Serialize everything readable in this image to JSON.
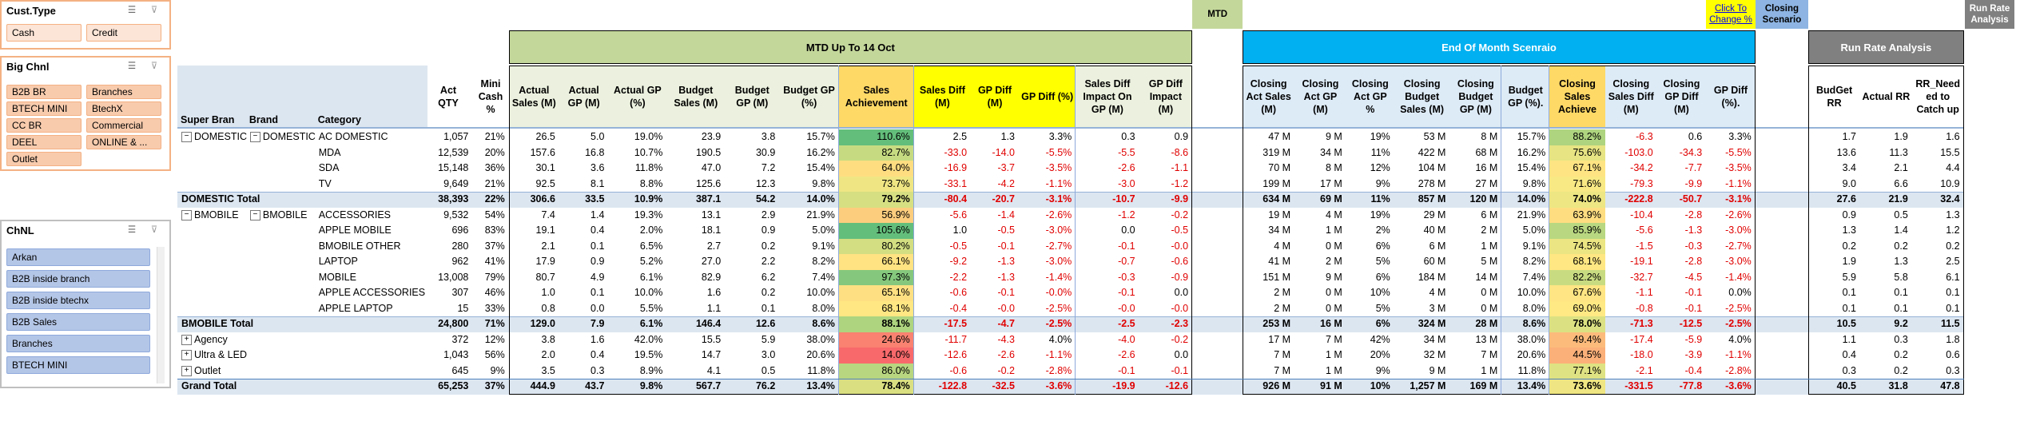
{
  "slicers": [
    {
      "title": "Cust.Type",
      "items": [
        "Cash",
        "Credit"
      ]
    },
    {
      "title": "Big Chnl",
      "items": [
        "B2B BR",
        "Branches",
        "BTECH MINI",
        "BtechX",
        "CC BR",
        "Commercial",
        "DEEL",
        "ONLINE & ...",
        "Outlet"
      ]
    },
    {
      "title": "ChNL",
      "items": [
        "Arkan",
        "B2B inside branch",
        "B2B inside btechx",
        "B2B Sales",
        "Branches",
        "BTECH MINI"
      ]
    }
  ],
  "buttons": {
    "mtd": "MTD",
    "click_to_change": "Click To Change %",
    "closing_scenario": "Closing Scenario",
    "run_rate_analysis": "Run Rate Analysis"
  },
  "table": {
    "groups": {
      "mtd": "MTD Up To 14 Oct",
      "end_of_month": "End Of Month Scenraio",
      "run_rate": "Run Rate Analysis"
    },
    "columns": [
      "Super Bran",
      "Brand",
      "Category",
      "Act QTY",
      "Mini Cash %",
      "Actual Sales (M)",
      "Actual GP (M)",
      "Actual GP (%)",
      "Budget Sales (M)",
      "Budget GP (M)",
      "Budget GP (%)",
      "Sales Achievement",
      "Sales Diff (M)",
      "GP Diff (M)",
      "GP Diff (%)",
      "Sales Diff Impact On GP (M)",
      "GP Diff Impact (M)",
      "Closing Act Sales (M)",
      "Closing Act GP (M)",
      "Closing Act GP %",
      "Closing Budget Sales (M)",
      "Closing Budget GP (M)",
      "Budget GP (%).",
      "Closing Sales Achieve",
      "Closing Sales Diff (M)",
      "Closing GP Diff (M)",
      "GP Diff (%).",
      "BudGet RR",
      "Actual RR",
      "RR_Needed to Catch up"
    ],
    "rows": [
      [
        "DOMESTIC",
        "DOMESTIC",
        "AC DOMESTIC",
        "1,057",
        "21%",
        "26.5",
        "5.0",
        "19.0%",
        "23.9",
        "3.8",
        "15.7%",
        "110.6%",
        "2.5",
        "1.3",
        "3.3%",
        "0.3",
        "0.9",
        "47 M",
        "9 M",
        "19%",
        "53 M",
        "8 M",
        "15.7%",
        "88.2%",
        "-6.3",
        "0.6",
        "3.3%",
        "1.7",
        "1.9",
        "1.6"
      ],
      [
        null,
        null,
        "MDA",
        "12,539",
        "20%",
        "157.6",
        "16.8",
        "10.7%",
        "190.5",
        "30.9",
        "16.2%",
        "82.7%",
        "-33.0",
        "-14.0",
        "-5.5%",
        "-5.5",
        "-8.6",
        "319 M",
        "34 M",
        "11%",
        "422 M",
        "68 M",
        "16.2%",
        "75.6%",
        "-103.0",
        "-34.3",
        "-5.5%",
        "13.6",
        "11.3",
        "15.5"
      ],
      [
        null,
        null,
        "SDA",
        "15,148",
        "36%",
        "30.1",
        "3.6",
        "11.8%",
        "47.0",
        "7.2",
        "15.4%",
        "64.0%",
        "-16.9",
        "-3.7",
        "-3.5%",
        "-2.6",
        "-1.1",
        "70 M",
        "8 M",
        "12%",
        "104 M",
        "16 M",
        "15.4%",
        "67.1%",
        "-34.2",
        "-7.7",
        "-3.5%",
        "3.4",
        "2.1",
        "4.4"
      ],
      [
        null,
        null,
        "TV",
        "9,649",
        "21%",
        "92.5",
        "8.1",
        "8.8%",
        "125.6",
        "12.3",
        "9.8%",
        "73.7%",
        "-33.1",
        "-4.2",
        "-1.1%",
        "-3.0",
        "-1.2",
        "199 M",
        "17 M",
        "9%",
        "278 M",
        "27 M",
        "9.8%",
        "71.6%",
        "-79.3",
        "-9.9",
        "-1.1%",
        "9.0",
        "6.6",
        "10.9"
      ],
      [
        "DOMESTIC Total",
        null,
        null,
        "38,393",
        "22%",
        "306.6",
        "33.5",
        "10.9%",
        "387.1",
        "54.2",
        "14.0%",
        "79.2%",
        "-80.4",
        "-20.7",
        "-3.1%",
        "-10.7",
        "-9.9",
        "634 M",
        "69 M",
        "11%",
        "857 M",
        "120 M",
        "14.0%",
        "74.0%",
        "-222.8",
        "-50.7",
        "-3.1%",
        "27.6",
        "21.9",
        "32.4"
      ],
      [
        "BMOBILE",
        "BMOBILE",
        "ACCESSORIES",
        "9,532",
        "54%",
        "7.4",
        "1.4",
        "19.3%",
        "13.1",
        "2.9",
        "21.9%",
        "56.9%",
        "-5.6",
        "-1.4",
        "-2.6%",
        "-1.2",
        "-0.2",
        "19 M",
        "4 M",
        "19%",
        "29 M",
        "6 M",
        "21.9%",
        "63.9%",
        "-10.4",
        "-2.8",
        "-2.6%",
        "0.9",
        "0.5",
        "1.3"
      ],
      [
        null,
        null,
        "APPLE MOBILE",
        "696",
        "83%",
        "19.1",
        "0.4",
        "2.0%",
        "18.1",
        "0.9",
        "5.0%",
        "105.6%",
        "1.0",
        "-0.5",
        "-3.0%",
        "0.0",
        "-0.5",
        "34 M",
        "1 M",
        "2%",
        "40 M",
        "2 M",
        "5.0%",
        "85.9%",
        "-5.6",
        "-1.3",
        "-3.0%",
        "1.3",
        "1.4",
        "1.2"
      ],
      [
        null,
        null,
        "BMOBILE OTHER",
        "280",
        "37%",
        "2.1",
        "0.1",
        "6.5%",
        "2.7",
        "0.2",
        "9.1%",
        "80.2%",
        "-0.5",
        "-0.1",
        "-2.7%",
        "-0.1",
        "-0.0",
        "4 M",
        "0 M",
        "6%",
        "6 M",
        "1 M",
        "9.1%",
        "74.5%",
        "-1.5",
        "-0.3",
        "-2.7%",
        "0.2",
        "0.2",
        "0.2"
      ],
      [
        null,
        null,
        "LAPTOP",
        "962",
        "41%",
        "17.9",
        "0.9",
        "5.2%",
        "27.0",
        "2.2",
        "8.2%",
        "66.1%",
        "-9.2",
        "-1.3",
        "-3.0%",
        "-0.7",
        "-0.6",
        "41 M",
        "2 M",
        "5%",
        "60 M",
        "5 M",
        "8.2%",
        "68.1%",
        "-19.1",
        "-2.8",
        "-3.0%",
        "1.9",
        "1.3",
        "2.5"
      ],
      [
        null,
        null,
        "MOBILE",
        "13,008",
        "79%",
        "80.7",
        "4.9",
        "6.1%",
        "82.9",
        "6.2",
        "7.4%",
        "97.3%",
        "-2.2",
        "-1.3",
        "-1.4%",
        "-0.3",
        "-0.9",
        "151 M",
        "9 M",
        "6%",
        "184 M",
        "14 M",
        "7.4%",
        "82.2%",
        "-32.7",
        "-4.5",
        "-1.4%",
        "5.9",
        "5.8",
        "6.1"
      ],
      [
        null,
        null,
        "APPLE ACCESSORIES",
        "307",
        "46%",
        "1.0",
        "0.1",
        "10.0%",
        "1.6",
        "0.2",
        "10.0%",
        "65.1%",
        "-0.6",
        "-0.1",
        "-0.0%",
        "-0.1",
        "0.0",
        "2 M",
        "0 M",
        "10%",
        "4 M",
        "0 M",
        "10.0%",
        "67.6%",
        "-1.1",
        "-0.1",
        "0.0%",
        "0.1",
        "0.1",
        "0.1"
      ],
      [
        null,
        null,
        "APPLE LAPTOP",
        "15",
        "33%",
        "0.8",
        "0.0",
        "5.5%",
        "1.1",
        "0.1",
        "8.0%",
        "68.1%",
        "-0.4",
        "-0.0",
        "-2.5%",
        "-0.0",
        "-0.0",
        "2 M",
        "0 M",
        "5%",
        "3 M",
        "0 M",
        "8.0%",
        "69.0%",
        "-0.8",
        "-0.1",
        "-2.5%",
        "0.1",
        "0.1",
        "0.1"
      ],
      [
        "BMOBILE Total",
        null,
        null,
        "24,800",
        "71%",
        "129.0",
        "7.9",
        "6.1%",
        "146.4",
        "12.6",
        "8.6%",
        "88.1%",
        "-17.5",
        "-4.7",
        "-2.5%",
        "-2.5",
        "-2.3",
        "253 M",
        "16 M",
        "6%",
        "324 M",
        "28 M",
        "8.6%",
        "78.0%",
        "-71.3",
        "-12.5",
        "-2.5%",
        "10.5",
        "9.2",
        "11.5"
      ],
      [
        "Agency",
        null,
        null,
        "372",
        "12%",
        "3.8",
        "1.6",
        "42.0%",
        "15.5",
        "5.9",
        "38.0%",
        "24.6%",
        "-11.7",
        "-4.3",
        "4.0%",
        "-4.0",
        "-0.2",
        "17 M",
        "7 M",
        "42%",
        "34 M",
        "13 M",
        "38.0%",
        "49.4%",
        "-17.4",
        "-5.9",
        "4.0%",
        "1.1",
        "0.3",
        "1.8"
      ],
      [
        "Ultra & LED",
        null,
        null,
        "1,043",
        "56%",
        "2.0",
        "0.4",
        "19.5%",
        "14.7",
        "3.0",
        "20.6%",
        "14.0%",
        "-12.6",
        "-2.6",
        "-1.1%",
        "-2.6",
        "0.0",
        "7 M",
        "1 M",
        "20%",
        "32 M",
        "7 M",
        "20.6%",
        "44.5%",
        "-18.0",
        "-3.9",
        "-1.1%",
        "0.4",
        "0.2",
        "0.6"
      ],
      [
        "Outlet",
        null,
        null,
        "645",
        "9%",
        "3.5",
        "0.3",
        "8.9%",
        "4.1",
        "0.5",
        "11.8%",
        "86.0%",
        "-0.6",
        "-0.2",
        "-2.8%",
        "-0.1",
        "-0.1",
        "7 M",
        "1 M",
        "9%",
        "9 M",
        "1 M",
        "11.8%",
        "77.1%",
        "-2.1",
        "-0.4",
        "-2.8%",
        "0.3",
        "0.2",
        "0.3"
      ],
      [
        "Grand Total",
        null,
        null,
        "65,253",
        "37%",
        "444.9",
        "43.7",
        "9.8%",
        "567.7",
        "76.2",
        "13.4%",
        "78.4%",
        "-122.8",
        "-32.5",
        "-3.6%",
        "-19.9",
        "-12.6",
        "926 M",
        "91 M",
        "10%",
        "1,257 M",
        "169 M",
        "13.4%",
        "73.6%",
        "-331.5",
        "-77.8",
        "-3.6%",
        "40.5",
        "31.8",
        "47.8"
      ]
    ]
  }
}
